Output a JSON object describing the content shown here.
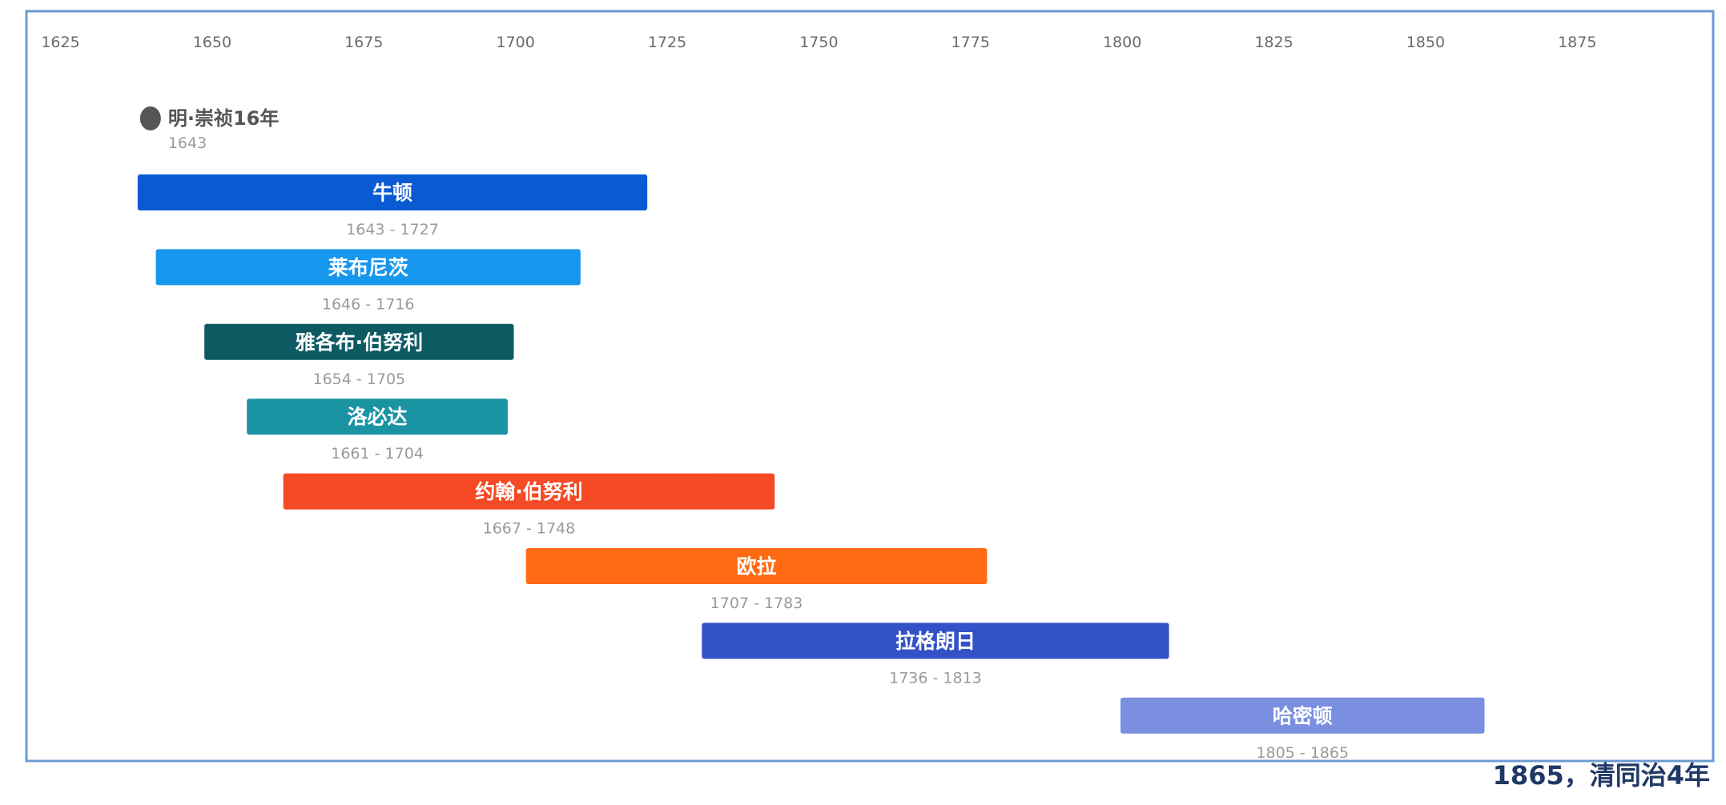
{
  "chart_data": {
    "type": "timeline",
    "x_ticks": [
      1625,
      1650,
      1675,
      1700,
      1725,
      1750,
      1775,
      1800,
      1825,
      1850,
      1875
    ],
    "xlim": [
      1625,
      1890
    ],
    "event": {
      "label": "明·崇祯16年",
      "year": 1643,
      "color": "#555555"
    },
    "bars": [
      {
        "name": "牛顿",
        "start": 1643,
        "end": 1727,
        "range": "1643 - 1727",
        "color": "#0a5bd3"
      },
      {
        "name": "莱布尼茨",
        "start": 1646,
        "end": 1716,
        "range": "1646 - 1716",
        "color": "#1796ee"
      },
      {
        "name": "雅各布·伯努利",
        "start": 1654,
        "end": 1705,
        "range": "1654 - 1705",
        "color": "#0d5a63"
      },
      {
        "name": "洛必达",
        "start": 1661,
        "end": 1704,
        "range": "1661 - 1704",
        "color": "#1a93a3"
      },
      {
        "name": "约翰·伯努利",
        "start": 1667,
        "end": 1748,
        "range": "1667 - 1748",
        "color": "#f54a25"
      },
      {
        "name": "欧拉",
        "start": 1707,
        "end": 1783,
        "range": "1707 - 1783",
        "color": "#ff6a13"
      },
      {
        "name": "拉格朗日",
        "start": 1736,
        "end": 1813,
        "range": "1736 - 1813",
        "color": "#3352c8"
      },
      {
        "name": "哈密顿",
        "start": 1805,
        "end": 1865,
        "range": "1805 - 1865",
        "color": "#7a8fe0"
      }
    ],
    "frame_color": "#6b9bd2"
  },
  "caption": "1865，清同治4年"
}
